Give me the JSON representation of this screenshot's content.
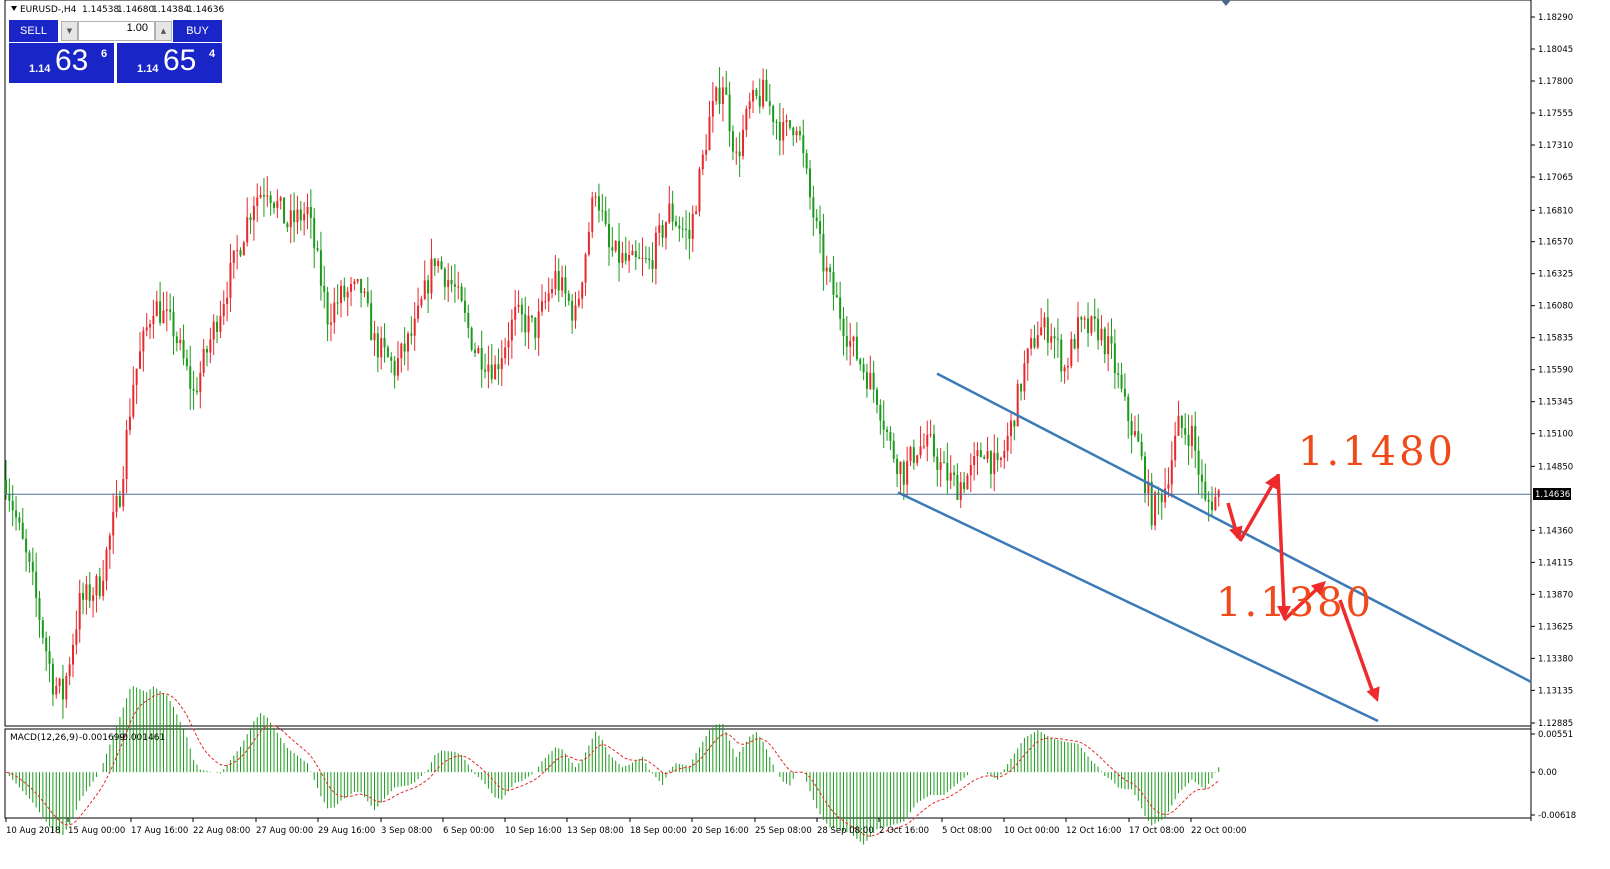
{
  "header": {
    "symbol": "EURUSD-,H4",
    "open": "1.14538",
    "high": "1.14680",
    "low": "1.14384",
    "close": "1.14636"
  },
  "trade_panel": {
    "sell_label": "SELL",
    "buy_label": "BUY",
    "lot_value": "1.00",
    "sell_prefix": "1.14",
    "sell_big": "63",
    "sell_sup": "6",
    "buy_prefix": "1.14",
    "buy_big": "65",
    "buy_sup": "4"
  },
  "chart_data": [
    {
      "type": "candlestick",
      "symbol": "EURUSD-",
      "timeframe": "H4",
      "price_ticks": [
        "1.18290",
        "1.18045",
        "1.17800",
        "1.17555",
        "1.17310",
        "1.17065",
        "1.16810",
        "1.16570",
        "1.16325",
        "1.16080",
        "1.15835",
        "1.15590",
        "1.15345",
        "1.15100",
        "1.14850",
        "1.14360",
        "1.14115",
        "1.13870",
        "1.13625",
        "1.13380",
        "1.13135",
        "1.12885"
      ],
      "current_price_label": "1.14636",
      "ylim": [
        1.12885,
        1.1829
      ],
      "x_ticks": [
        "10 Aug 2018",
        "15 Aug 00:00",
        "17 Aug 16:00",
        "22 Aug 08:00",
        "27 Aug 00:00",
        "29 Aug 16:00",
        "3 Sep 08:00",
        "6 Sep 00:00",
        "10 Sep 16:00",
        "13 Sep 08:00",
        "18 Sep 00:00",
        "20 Sep 16:00",
        "25 Sep 08:00",
        "28 Sep 08:00",
        "2 Oct 16:00",
        "5 Oct 08:00",
        "10 Oct 00:00",
        "12 Oct 16:00",
        "17 Oct 08:00",
        "22 Oct 00:00"
      ],
      "path_points": [
        [
          0,
          1.1475
        ],
        [
          8,
          1.1395
        ],
        [
          14,
          1.132
        ],
        [
          17,
          1.131
        ],
        [
          22,
          1.138
        ],
        [
          28,
          1.1395
        ],
        [
          34,
          1.1465
        ],
        [
          38,
          1.155
        ],
        [
          44,
          1.161
        ],
        [
          50,
          1.159
        ],
        [
          56,
          1.154
        ],
        [
          62,
          1.159
        ],
        [
          68,
          1.164
        ],
        [
          74,
          1.169
        ],
        [
          78,
          1.17
        ],
        [
          84,
          1.167
        ],
        [
          90,
          1.168
        ],
        [
          96,
          1.16
        ],
        [
          100,
          1.1615
        ],
        [
          106,
          1.162
        ],
        [
          110,
          1.158
        ],
        [
          116,
          1.156
        ],
        [
          122,
          1.159
        ],
        [
          128,
          1.1645
        ],
        [
          134,
          1.162
        ],
        [
          140,
          1.1575
        ],
        [
          146,
          1.156
        ],
        [
          152,
          1.16
        ],
        [
          158,
          1.159
        ],
        [
          164,
          1.163
        ],
        [
          170,
          1.16
        ],
        [
          176,
          1.17
        ],
        [
          180,
          1.165
        ],
        [
          186,
          1.164
        ],
        [
          192,
          1.164
        ],
        [
          198,
          1.168
        ],
        [
          204,
          1.166
        ],
        [
          210,
          1.175
        ],
        [
          214,
          1.178
        ],
        [
          218,
          1.172
        ],
        [
          222,
          1.176
        ],
        [
          226,
          1.177
        ],
        [
          232,
          1.174
        ],
        [
          236,
          1.175
        ],
        [
          240,
          1.169
        ],
        [
          244,
          1.164
        ],
        [
          248,
          1.161
        ],
        [
          252,
          1.158
        ],
        [
          256,
          1.156
        ],
        [
          260,
          1.154
        ],
        [
          264,
          1.15
        ],
        [
          268,
          1.148
        ],
        [
          272,
          1.15
        ],
        [
          276,
          1.15
        ],
        [
          280,
          1.148
        ],
        [
          284,
          1.147
        ],
        [
          288,
          1.148
        ],
        [
          292,
          1.15
        ],
        [
          296,
          1.148
        ],
        [
          300,
          1.1515
        ],
        [
          304,
          1.156
        ],
        [
          308,
          1.159
        ],
        [
          312,
          1.159
        ],
        [
          316,
          1.156
        ],
        [
          320,
          1.159
        ],
        [
          326,
          1.159
        ],
        [
          330,
          1.157
        ],
        [
          334,
          1.153
        ],
        [
          338,
          1.15
        ],
        [
          342,
          1.145
        ],
        [
          346,
          1.147
        ],
        [
          350,
          1.1515
        ],
        [
          354,
          1.151
        ],
        [
          358,
          1.1455
        ],
        [
          362,
          1.1463
        ]
      ],
      "channel_lines": [
        {
          "from": [
            1.1556
          ],
          "to": [
            1.132
          ]
        },
        {
          "from": [
            1.1465
          ],
          "to": [
            1.129
          ]
        }
      ],
      "annotations": [
        {
          "text": "1.1480",
          "price": 1.148
        },
        {
          "text": "1.1380",
          "price": 1.138
        }
      ]
    },
    {
      "type": "bar",
      "name": "MACD(12,26,9)",
      "header_values": [
        "-0.001699",
        "-0.001461"
      ],
      "y_ticks": [
        "0.00551",
        "0.00",
        "-0.00618"
      ],
      "ylim": [
        -0.00618,
        0.00551
      ]
    }
  ]
}
